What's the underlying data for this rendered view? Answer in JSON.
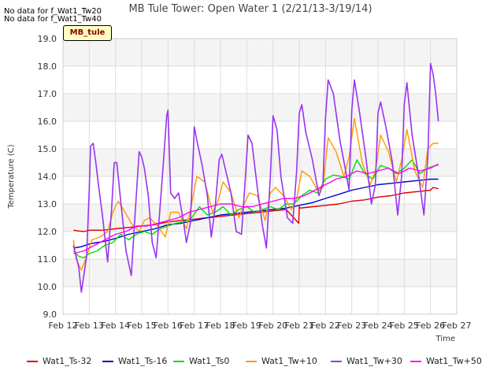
{
  "notes": [
    "No data for f_Wat1_Tw20",
    "No data for f_Wat1_Tw40"
  ],
  "site_label": "MB_tule",
  "chart_data": {
    "type": "line",
    "title": "MB Tule Tower: Open Water 1 (2/21/13-3/19/14)",
    "xlabel": "Time",
    "ylabel": "Temperature (C)",
    "x_tick_labels": [
      "Feb 12",
      "Feb 13",
      "Feb 14",
      "Feb 15",
      "Feb 16",
      "Feb 17",
      "Feb 18",
      "Feb 19",
      "Feb 20",
      "Feb 21",
      "Feb 22",
      "Feb 23",
      "Feb 24",
      "Feb 25",
      "Feb 26",
      "Feb 27"
    ],
    "xlim": [
      12,
      27
    ],
    "ylim": [
      9.0,
      19.0
    ],
    "y_ticks": [
      9.0,
      10.0,
      11.0,
      12.0,
      13.0,
      14.0,
      15.0,
      16.0,
      17.0,
      18.0,
      19.0
    ],
    "grid": true,
    "legend_position": "bottom",
    "series": [
      {
        "name": "Wat1_Ts-32",
        "color": "#dd0000",
        "x": [
          12.4,
          12.6,
          12.8,
          13.0,
          13.5,
          14.0,
          14.5,
          15.0,
          15.5,
          16.0,
          16.5,
          17.0,
          17.5,
          18.0,
          18.5,
          19.0,
          19.5,
          20.0,
          20.5,
          20.98,
          21.0,
          21.02,
          21.5,
          22.0,
          22.5,
          23.0,
          23.5,
          24.0,
          24.5,
          25.0,
          25.5,
          26.0,
          26.1,
          26.3
        ],
        "y": [
          12.05,
          12.02,
          12.0,
          12.05,
          12.05,
          12.1,
          12.15,
          12.2,
          12.25,
          12.35,
          12.4,
          12.45,
          12.5,
          12.55,
          12.6,
          12.65,
          12.7,
          12.75,
          12.8,
          12.3,
          12.9,
          12.85,
          12.9,
          12.95,
          13.0,
          13.1,
          13.15,
          13.25,
          13.3,
          13.4,
          13.45,
          13.5,
          13.6,
          13.55
        ]
      },
      {
        "name": "Wat1_Ts-16",
        "color": "#0000cc",
        "x": [
          12.4,
          12.7,
          13.0,
          13.3,
          13.6,
          14.0,
          14.5,
          15.0,
          15.5,
          16.0,
          16.5,
          17.0,
          17.5,
          18.0,
          18.5,
          19.0,
          19.5,
          20.0,
          20.5,
          21.0,
          21.5,
          22.0,
          22.5,
          23.0,
          23.5,
          24.0,
          24.5,
          25.0,
          25.5,
          26.0,
          26.3
        ],
        "y": [
          11.4,
          11.45,
          11.55,
          11.6,
          11.65,
          11.75,
          11.9,
          12.0,
          12.1,
          12.25,
          12.3,
          12.4,
          12.5,
          12.6,
          12.65,
          12.7,
          12.75,
          12.8,
          12.85,
          12.95,
          13.05,
          13.2,
          13.35,
          13.5,
          13.6,
          13.7,
          13.75,
          13.8,
          13.85,
          13.9,
          13.9
        ]
      },
      {
        "name": "Wat1_Ts0",
        "color": "#00dd00",
        "x": [
          12.4,
          12.6,
          12.8,
          13.0,
          13.3,
          13.6,
          13.9,
          14.2,
          14.5,
          14.8,
          15.1,
          15.4,
          15.7,
          16.0,
          16.3,
          16.6,
          16.9,
          17.2,
          17.5,
          17.8,
          18.1,
          18.4,
          18.7,
          19.0,
          19.3,
          19.6,
          19.9,
          20.2,
          20.5,
          20.8,
          21.1,
          21.4,
          21.7,
          22.0,
          22.3,
          22.6,
          22.9,
          23.2,
          23.5,
          23.8,
          24.1,
          24.4,
          24.7,
          25.0,
          25.3,
          25.6,
          25.9,
          26.2,
          26.3
        ],
        "y": [
          11.3,
          11.1,
          11.05,
          11.2,
          11.3,
          11.5,
          11.6,
          11.9,
          11.7,
          11.9,
          12.0,
          11.9,
          12.1,
          12.2,
          12.3,
          12.35,
          12.5,
          12.9,
          12.6,
          12.7,
          12.9,
          12.6,
          12.8,
          12.9,
          12.7,
          12.8,
          12.9,
          12.8,
          13.0,
          13.0,
          13.3,
          13.5,
          13.4,
          13.9,
          14.05,
          14.0,
          13.9,
          14.6,
          14.1,
          13.9,
          14.4,
          14.3,
          14.1,
          14.3,
          14.6,
          14.1,
          14.3,
          14.4,
          14.4
        ]
      },
      {
        "name": "Wat1_Tw+10",
        "color": "#ff9900",
        "x": [
          12.4,
          12.5,
          12.7,
          12.9,
          13.1,
          13.4,
          13.7,
          13.9,
          14.1,
          14.3,
          14.6,
          14.9,
          15.1,
          15.3,
          15.6,
          15.9,
          16.1,
          16.4,
          16.7,
          16.9,
          17.1,
          17.4,
          17.7,
          17.9,
          18.1,
          18.4,
          18.7,
          18.9,
          19.1,
          19.4,
          19.7,
          19.9,
          20.1,
          20.4,
          20.7,
          20.9,
          21.1,
          21.4,
          21.7,
          21.9,
          22.1,
          22.4,
          22.7,
          22.9,
          23.1,
          23.4,
          23.7,
          23.9,
          24.1,
          24.4,
          24.7,
          24.9,
          25.1,
          25.4,
          25.7,
          25.9,
          26.1,
          26.3
        ],
        "y": [
          11.7,
          11.0,
          10.6,
          11.1,
          11.7,
          11.8,
          12.0,
          12.7,
          13.1,
          12.8,
          12.3,
          12.0,
          12.4,
          12.5,
          12.2,
          11.8,
          12.7,
          12.7,
          12.1,
          13.0,
          14.0,
          13.8,
          12.7,
          13.1,
          13.8,
          13.4,
          12.5,
          13.0,
          13.4,
          13.3,
          12.4,
          13.4,
          13.6,
          13.3,
          12.8,
          13.2,
          14.2,
          14.0,
          13.5,
          13.6,
          15.4,
          14.9,
          14.0,
          14.7,
          16.1,
          14.5,
          13.7,
          14.2,
          15.5,
          14.9,
          13.8,
          14.6,
          15.7,
          14.2,
          13.6,
          15.0,
          15.2,
          15.2
        ]
      },
      {
        "name": "Wat1_Tw+30",
        "color": "#9933ee",
        "x": [
          12.4,
          12.6,
          12.7,
          12.9,
          13.0,
          13.05,
          13.15,
          13.25,
          13.35,
          13.5,
          13.7,
          13.85,
          13.95,
          14.05,
          14.2,
          14.4,
          14.6,
          14.75,
          14.9,
          15.0,
          15.1,
          15.25,
          15.4,
          15.55,
          15.65,
          15.8,
          15.95,
          16.0,
          16.1,
          16.25,
          16.4,
          16.6,
          16.7,
          16.85,
          16.95,
          17.0,
          17.1,
          17.3,
          17.5,
          17.65,
          17.8,
          17.95,
          18.05,
          18.2,
          18.4,
          18.6,
          18.8,
          18.95,
          19.05,
          19.2,
          19.4,
          19.6,
          19.75,
          19.9,
          20.0,
          20.15,
          20.3,
          20.55,
          20.75,
          20.9,
          21.0,
          21.1,
          21.25,
          21.5,
          21.75,
          21.9,
          22.0,
          22.1,
          22.3,
          22.55,
          22.75,
          22.9,
          23.0,
          23.1,
          23.3,
          23.55,
          23.75,
          23.9,
          24.0,
          24.1,
          24.3,
          24.55,
          24.75,
          24.9,
          25.0,
          25.1,
          25.3,
          25.55,
          25.75,
          25.9,
          26.0,
          26.1,
          26.2,
          26.3
        ],
        "y": [
          11.5,
          10.7,
          9.8,
          11.1,
          13.5,
          15.1,
          15.2,
          14.5,
          13.7,
          12.6,
          10.9,
          12.8,
          14.5,
          14.5,
          13.1,
          11.3,
          10.4,
          12.7,
          14.9,
          14.7,
          14.3,
          13.3,
          11.6,
          11.05,
          12.3,
          14.2,
          16.2,
          16.4,
          13.4,
          13.2,
          13.4,
          12.3,
          11.6,
          12.3,
          14.5,
          15.8,
          15.3,
          14.4,
          13.3,
          11.8,
          12.9,
          14.6,
          14.8,
          14.2,
          13.4,
          12.0,
          11.9,
          14.0,
          15.5,
          15.2,
          13.6,
          12.2,
          11.4,
          14.0,
          16.2,
          15.7,
          14.0,
          12.5,
          12.3,
          14.2,
          16.3,
          16.6,
          15.6,
          14.6,
          13.3,
          13.7,
          16.1,
          17.5,
          17.0,
          15.3,
          14.3,
          13.5,
          16.4,
          17.5,
          16.3,
          14.6,
          13.0,
          13.7,
          16.3,
          16.7,
          15.8,
          14.5,
          12.6,
          14.0,
          16.6,
          17.4,
          15.5,
          14.0,
          12.6,
          14.7,
          18.1,
          17.7,
          17.0,
          16.0
        ]
      },
      {
        "name": "Wat1_Tw+50",
        "color": "#ff00ff",
        "x": [
          12.4,
          12.8,
          13.2,
          13.6,
          14.0,
          14.4,
          14.8,
          15.2,
          15.6,
          16.0,
          16.4,
          16.8,
          17.2,
          17.6,
          18.0,
          18.4,
          18.8,
          19.2,
          19.6,
          20.0,
          20.4,
          20.8,
          21.2,
          21.6,
          22.0,
          22.4,
          22.8,
          23.2,
          23.6,
          24.0,
          24.4,
          24.8,
          25.2,
          25.6,
          26.0,
          26.3
        ],
        "y": [
          11.2,
          11.3,
          11.5,
          11.7,
          11.9,
          12.0,
          12.2,
          12.2,
          12.3,
          12.4,
          12.5,
          12.7,
          12.8,
          12.9,
          13.0,
          13.0,
          12.9,
          12.9,
          13.0,
          13.1,
          13.2,
          13.2,
          13.3,
          13.5,
          13.7,
          13.9,
          14.0,
          14.2,
          14.1,
          14.2,
          14.3,
          14.1,
          14.3,
          14.2,
          14.3,
          14.45
        ]
      }
    ]
  }
}
